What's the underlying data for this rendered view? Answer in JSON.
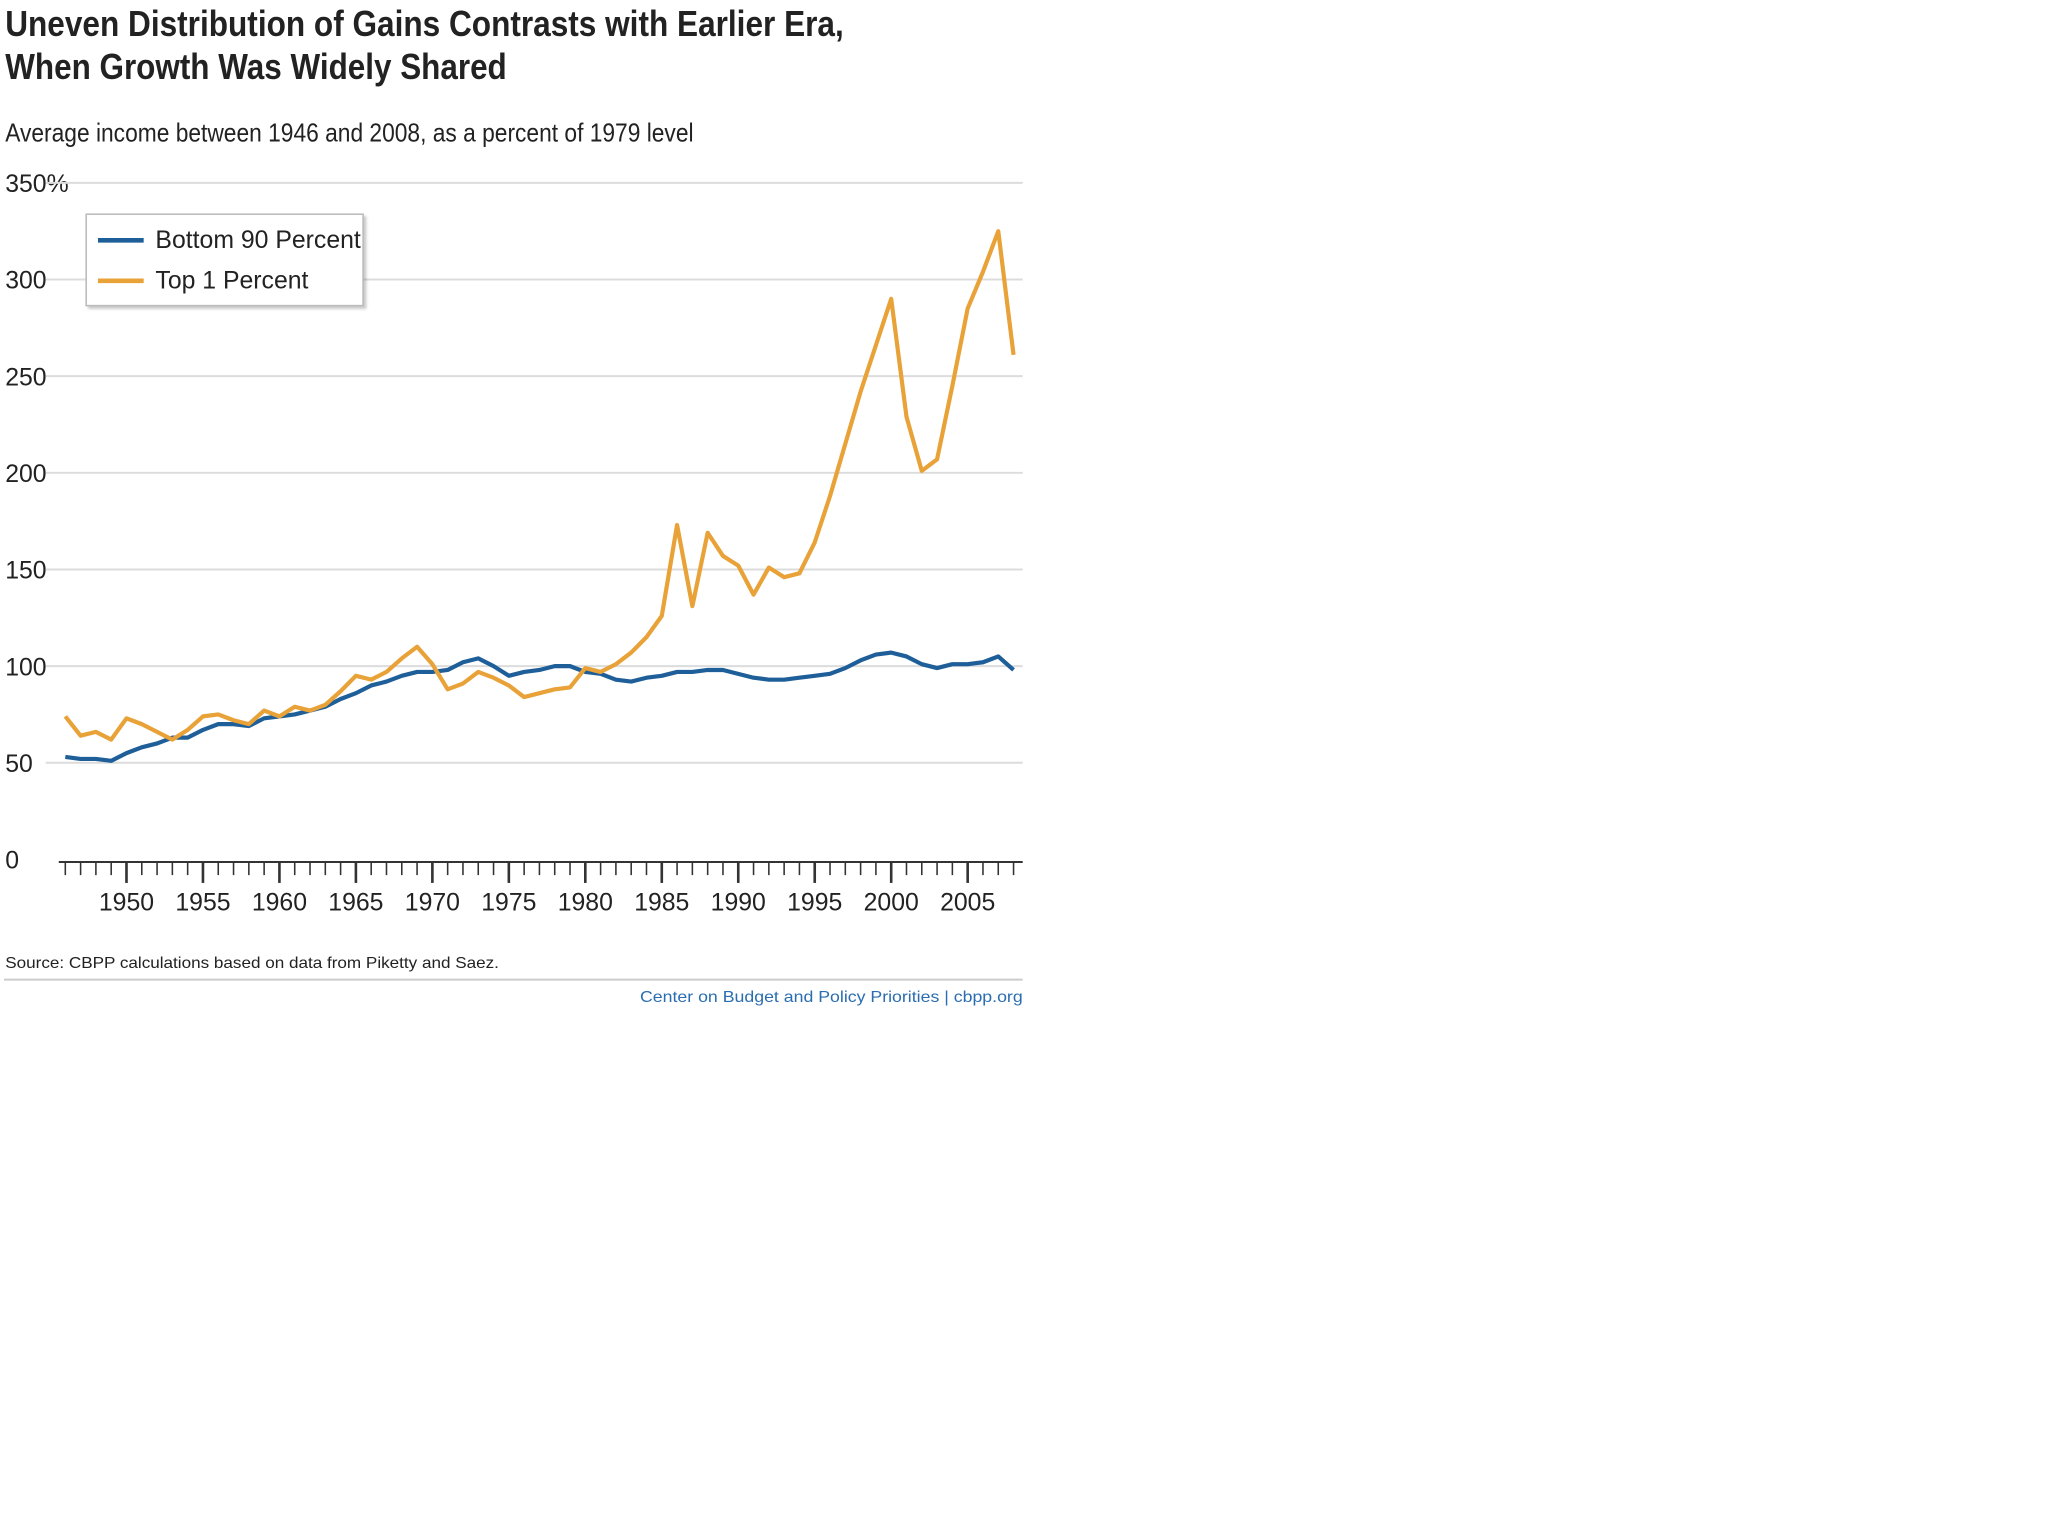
{
  "chart_data": {
    "type": "line",
    "title": [
      "Uneven Distribution of Gains Contrasts with Earlier Era,",
      "When Growth Was Widely Shared"
    ],
    "subtitle": "Average income between 1946 and 2008, as a percent of 1979 level",
    "source": "Source: CBPP calculations based on data from Piketty and Saez.",
    "credit": "Center on Budget and Policy Priorities | cbpp.org",
    "x": [
      1946,
      1947,
      1948,
      1949,
      1950,
      1951,
      1952,
      1953,
      1954,
      1955,
      1956,
      1957,
      1958,
      1959,
      1960,
      1961,
      1962,
      1963,
      1964,
      1965,
      1966,
      1967,
      1968,
      1969,
      1970,
      1971,
      1972,
      1973,
      1974,
      1975,
      1976,
      1977,
      1978,
      1979,
      1980,
      1981,
      1982,
      1983,
      1984,
      1985,
      1986,
      1987,
      1988,
      1989,
      1990,
      1991,
      1992,
      1993,
      1994,
      1995,
      1996,
      1997,
      1998,
      1999,
      2000,
      2001,
      2002,
      2003,
      2004,
      2005,
      2006,
      2007,
      2008
    ],
    "series": [
      {
        "name": "Bottom 90 Percent",
        "color": "#1f5f99",
        "values": [
          53,
          52,
          52,
          51,
          55,
          58,
          60,
          63,
          63,
          67,
          70,
          70,
          69,
          73,
          74,
          75,
          77,
          79,
          83,
          86,
          90,
          92,
          95,
          97,
          97,
          98,
          102,
          104,
          100,
          95,
          97,
          98,
          100,
          100,
          97,
          96,
          93,
          92,
          94,
          95,
          97,
          97,
          98,
          98,
          96,
          94,
          93,
          93,
          94,
          95,
          96,
          99,
          103,
          106,
          107,
          105,
          101,
          99,
          101,
          101,
          102,
          105,
          98
        ]
      },
      {
        "name": "Top 1 Percent",
        "color": "#e8a238",
        "values": [
          74,
          64,
          66,
          62,
          73,
          70,
          66,
          62,
          67,
          74,
          75,
          72,
          70,
          77,
          74,
          79,
          77,
          80,
          87,
          95,
          93,
          97,
          104,
          110,
          101,
          88,
          91,
          97,
          94,
          90,
          84,
          86,
          88,
          89,
          99,
          97,
          101,
          107,
          115,
          126,
          173,
          131,
          169,
          157,
          152,
          137,
          151,
          146,
          148,
          164,
          188,
          215,
          242,
          266,
          290,
          229,
          201,
          207,
          245,
          285,
          304,
          325,
          261
        ]
      }
    ],
    "xlim": [
      1946,
      2008
    ],
    "xticks": [
      1950,
      1955,
      1960,
      1965,
      1970,
      1975,
      1980,
      1985,
      1990,
      1995,
      2000,
      2005
    ],
    "ylim": [
      0,
      350
    ],
    "yticks": [
      0,
      50,
      100,
      150,
      200,
      250,
      300,
      {
        "value": 350,
        "label": "350%"
      }
    ],
    "grid": true,
    "legend": "upper left"
  }
}
